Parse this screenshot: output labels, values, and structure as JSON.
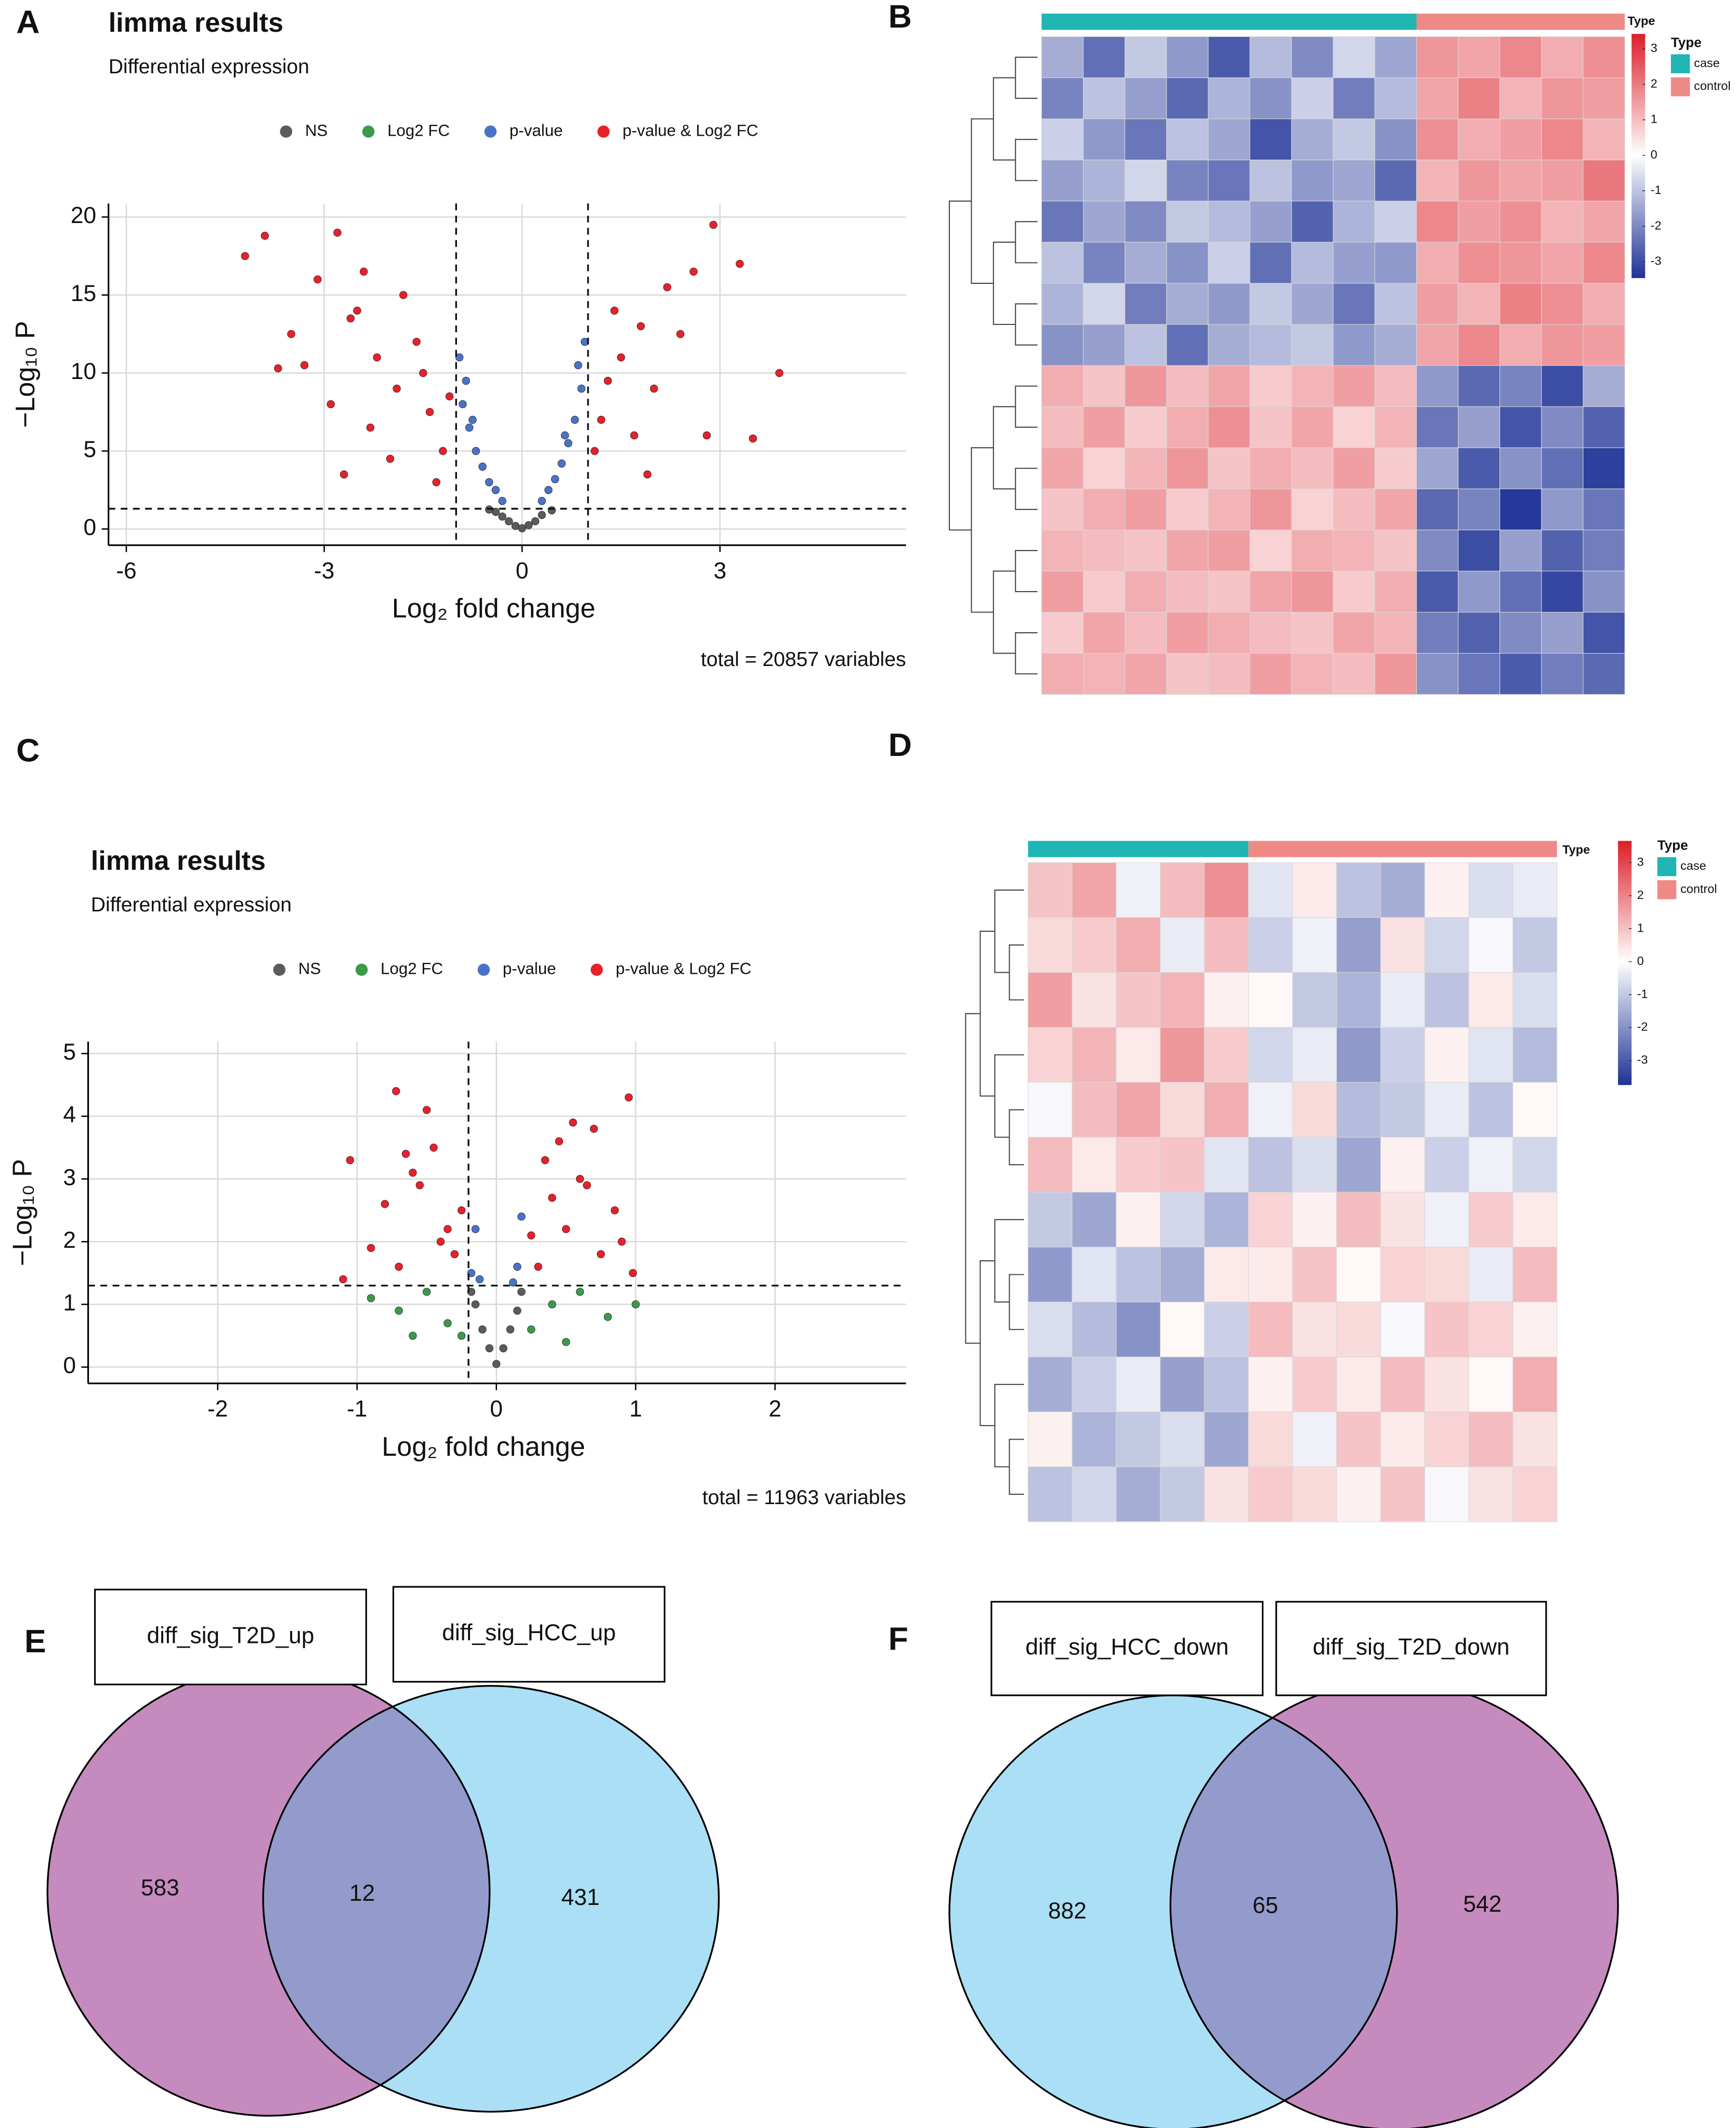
{
  "chart_data": [
    {
      "type": "scatter",
      "panel_label": "A",
      "title": "limma results",
      "subtitle": "Differential expression",
      "xlabel": "Log₂ fold change",
      "ylabel": "−Log₁₀ P",
      "caption": "total = 20857 variables",
      "xlim": [
        -6.27,
        5.82
      ],
      "ylim": [
        -1.04,
        20.87
      ],
      "xticks": [
        -6,
        -3,
        0,
        3
      ],
      "yticks": [
        0,
        5,
        10,
        15,
        20
      ],
      "grid": true,
      "legend": "top",
      "vlines": [
        -1,
        1
      ],
      "hline": 1.3,
      "series": [
        {
          "name": "NS",
          "color": "#5b5b5b",
          "x": [
            -0.4,
            -0.3,
            -0.2,
            -0.1,
            0,
            0.1,
            0.2,
            0.3,
            0.45,
            -0.5
          ],
          "values": [
            1.1,
            0.8,
            0.5,
            0.2,
            0.05,
            0.25,
            0.5,
            0.9,
            1.2,
            1.25
          ]
        },
        {
          "name": "Log2 FC",
          "color": "#3a9a4a",
          "x": [],
          "values": []
        },
        {
          "name": "p-value",
          "color": "#4a72c8",
          "x": [
            -0.9,
            -0.8,
            -0.7,
            -0.6,
            -0.5,
            -0.4,
            -0.3,
            -0.95,
            -0.85,
            -0.75,
            0.3,
            0.4,
            0.5,
            0.6,
            0.7,
            0.8,
            0.9,
            0.95,
            0.85,
            0.65
          ],
          "values": [
            8,
            6.5,
            5,
            4,
            3,
            2.5,
            1.8,
            11,
            9.5,
            7,
            1.8,
            2.5,
            3.2,
            4.2,
            5.5,
            7,
            9,
            12,
            10.5,
            6
          ]
        },
        {
          "name": "p-value & Log2 FC",
          "color": "#e8202a",
          "x": [
            -4.2,
            -3.9,
            -3.5,
            -3.1,
            -2.8,
            -2.5,
            -3.3,
            -2.9,
            -2.2,
            -2.6,
            -1.9,
            -2.3,
            -1.6,
            -2.0,
            -1.4,
            -1.8,
            -1.2,
            -2.7,
            -1.5,
            -1.1,
            -3.7,
            -2.4,
            -1.3,
            1.2,
            1.5,
            1.8,
            2.2,
            2.6,
            2.9,
            3.3,
            3.9,
            1.4,
            2.0,
            1.1,
            2.4,
            1.7,
            1.3,
            2.8,
            1.9,
            3.5
          ],
          "values": [
            17.5,
            18.8,
            12.5,
            16,
            19,
            14,
            10.5,
            8,
            11,
            13.5,
            9,
            6.5,
            12,
            4.5,
            7.5,
            15,
            5,
            3.5,
            10,
            8.5,
            10.3,
            16.5,
            3,
            7,
            11,
            13,
            15.5,
            16.5,
            19.5,
            17,
            10,
            14,
            9,
            5,
            12.5,
            6,
            9.5,
            6,
            3.5,
            5.8
          ]
        }
      ]
    },
    {
      "type": "heatmap",
      "panel_label": "B",
      "annotation_label": "Type",
      "legend_title": "Type",
      "zlim": [
        -3.46,
        3.42
      ],
      "colorbar_ticks": [
        3,
        2,
        1,
        0,
        -1,
        -2,
        -3
      ],
      "series": [
        {
          "name": "case",
          "color": "#20b5b3",
          "values": [
            [
              -1.2,
              -2.1,
              -0.8,
              -1.5,
              -2.4,
              -1.0,
              -1.7,
              -0.6,
              -1.3
            ],
            [
              -1.8,
              -0.9,
              -1.4,
              -2.2,
              -1.1,
              -1.6,
              -0.7,
              -1.9,
              -1.0
            ],
            [
              -0.7,
              -1.5,
              -2.0,
              -0.9,
              -1.3,
              -2.5,
              -1.2,
              -0.8,
              -1.6
            ],
            [
              -1.4,
              -1.1,
              -0.6,
              -1.8,
              -2.0,
              -0.9,
              -1.5,
              -1.3,
              -2.2
            ],
            [
              -2.0,
              -1.3,
              -1.7,
              -0.8,
              -1.0,
              -1.4,
              -2.3,
              -1.1,
              -0.7
            ],
            [
              -0.9,
              -1.8,
              -1.2,
              -1.6,
              -0.7,
              -2.1,
              -1.0,
              -1.4,
              -1.5
            ],
            [
              -1.1,
              -0.6,
              -1.9,
              -1.2,
              -1.5,
              -0.8,
              -1.3,
              -2.0,
              -0.9
            ],
            [
              -1.6,
              -1.4,
              -0.9,
              -2.1,
              -1.2,
              -1.0,
              -0.8,
              -1.5,
              -1.2
            ],
            [
              1.1,
              0.8,
              1.4,
              0.9,
              1.2,
              0.7,
              1.0,
              1.3,
              0.9
            ],
            [
              0.9,
              1.3,
              0.7,
              1.1,
              1.5,
              0.8,
              1.2,
              0.6,
              1.0
            ],
            [
              1.2,
              0.6,
              1.0,
              1.4,
              0.8,
              1.1,
              0.9,
              1.3,
              0.7
            ],
            [
              0.8,
              1.1,
              1.3,
              0.7,
              1.0,
              1.4,
              0.6,
              0.9,
              1.2
            ],
            [
              1.0,
              0.9,
              0.8,
              1.2,
              1.3,
              0.6,
              1.1,
              1.0,
              0.8
            ],
            [
              1.3,
              0.7,
              1.1,
              0.9,
              0.8,
              1.2,
              1.4,
              0.7,
              1.1
            ],
            [
              0.7,
              1.2,
              0.9,
              1.3,
              1.1,
              0.9,
              0.8,
              1.2,
              1.0
            ],
            [
              1.1,
              1.0,
              1.2,
              0.8,
              0.9,
              1.3,
              1.0,
              0.9,
              1.4
            ]
          ]
        },
        {
          "name": "control",
          "color": "#ee8a86",
          "values": [
            [
              1.4,
              1.2,
              1.6,
              1.1,
              1.5
            ],
            [
              1.2,
              1.7,
              1.0,
              1.4,
              1.3
            ],
            [
              1.5,
              1.1,
              1.3,
              1.6,
              1.0
            ],
            [
              1.0,
              1.4,
              1.2,
              1.3,
              1.8
            ],
            [
              1.6,
              1.3,
              1.5,
              1.0,
              1.2
            ],
            [
              1.1,
              1.5,
              1.4,
              1.2,
              1.6
            ],
            [
              1.3,
              1.0,
              1.7,
              1.5,
              1.1
            ],
            [
              1.2,
              1.6,
              1.1,
              1.4,
              1.3
            ],
            [
              -1.5,
              -2.2,
              -1.8,
              -2.6,
              -1.2
            ],
            [
              -2.0,
              -1.4,
              -2.5,
              -1.7,
              -2.3
            ],
            [
              -1.3,
              -2.4,
              -1.6,
              -2.1,
              -2.8
            ],
            [
              -2.2,
              -1.8,
              -2.9,
              -1.5,
              -2.0
            ],
            [
              -1.7,
              -2.6,
              -1.4,
              -2.3,
              -1.9
            ],
            [
              -2.4,
              -1.5,
              -2.1,
              -2.7,
              -1.6
            ],
            [
              -1.9,
              -2.3,
              -1.7,
              -1.4,
              -2.5
            ],
            [
              -1.6,
              -2.0,
              -2.4,
              -1.9,
              -2.2
            ]
          ]
        }
      ]
    },
    {
      "type": "scatter",
      "panel_label": "C",
      "title": "limma results",
      "subtitle": "Differential expression",
      "xlabel": "Log₂ fold change",
      "ylabel": "−Log₁₀ P",
      "caption": "total = 11963 variables",
      "xlim": [
        -2.93,
        2.94
      ],
      "ylim": [
        -0.26,
        5.19
      ],
      "xticks": [
        -2,
        -1,
        0,
        1,
        2
      ],
      "yticks": [
        0,
        1,
        2,
        3,
        4,
        5
      ],
      "grid": true,
      "legend": "top",
      "vlines": [
        -0.2
      ],
      "hline": 1.3,
      "series": [
        {
          "name": "NS",
          "color": "#5b5b5b",
          "x": [
            -0.15,
            -0.1,
            -0.05,
            0,
            0.05,
            0.1,
            0.15,
            -0.18,
            0.18
          ],
          "values": [
            1.0,
            0.6,
            0.3,
            0.05,
            0.3,
            0.6,
            0.9,
            1.2,
            1.2
          ]
        },
        {
          "name": "Log2 FC",
          "color": "#3a9a4a",
          "x": [
            -0.9,
            -0.7,
            -0.5,
            -0.35,
            -0.25,
            0.25,
            0.4,
            0.6,
            0.8,
            1.0,
            -0.6,
            0.5
          ],
          "values": [
            1.1,
            0.9,
            1.2,
            0.7,
            0.5,
            0.6,
            1.0,
            1.2,
            0.8,
            1.0,
            0.5,
            0.4
          ]
        },
        {
          "name": "p-value",
          "color": "#4a72c8",
          "x": [
            -0.18,
            -0.15,
            0.15,
            0.18,
            -0.12,
            0.12
          ],
          "values": [
            1.5,
            2.2,
            1.6,
            2.4,
            1.4,
            1.35
          ]
        },
        {
          "name": "p-value & Log2 FC",
          "color": "#e8202a",
          "x": [
            -0.72,
            -0.5,
            -1.05,
            -0.8,
            -0.6,
            -0.45,
            -0.35,
            -0.9,
            -0.7,
            -0.55,
            -0.3,
            -0.25,
            -0.65,
            -1.1,
            -0.4,
            0.25,
            0.35,
            0.45,
            0.55,
            0.7,
            0.95,
            0.85,
            0.65,
            0.3,
            0.4,
            0.5,
            0.6,
            0.75,
            0.9,
            0.98
          ],
          "values": [
            4.4,
            4.1,
            3.3,
            2.6,
            3.1,
            3.5,
            2.2,
            1.9,
            1.6,
            2.9,
            1.8,
            2.5,
            3.4,
            1.4,
            2.0,
            2.1,
            3.3,
            3.6,
            3.9,
            3.8,
            4.3,
            2.5,
            2.9,
            1.6,
            2.7,
            2.2,
            3.0,
            1.8,
            2.0,
            1.5
          ]
        }
      ]
    },
    {
      "type": "heatmap",
      "panel_label": "D",
      "annotation_label": "Type",
      "legend_title": "Type",
      "zlim": [
        -3.74,
        3.66
      ],
      "colorbar_ticks": [
        3,
        2,
        1,
        0,
        -1,
        -2,
        -3
      ],
      "series": [
        {
          "name": "case",
          "color": "#20b5b3",
          "values": [
            [
              0.8,
              1.2,
              -0.2,
              0.9,
              1.5
            ],
            [
              0.5,
              0.7,
              1.1,
              -0.3,
              0.9
            ],
            [
              1.3,
              0.4,
              0.8,
              1.0,
              0.2
            ],
            [
              0.6,
              1.0,
              0.3,
              1.4,
              0.7
            ],
            [
              -0.1,
              0.9,
              1.2,
              0.5,
              1.1
            ],
            [
              0.9,
              0.3,
              0.7,
              0.8,
              -0.4
            ],
            [
              -0.8,
              -1.3,
              0.2,
              -0.6,
              -1.1
            ],
            [
              -1.5,
              -0.4,
              -0.9,
              -1.2,
              0.3
            ],
            [
              -0.5,
              -1.0,
              -1.6,
              0.1,
              -0.7
            ],
            [
              -1.2,
              -0.7,
              -0.3,
              -1.4,
              -0.9
            ],
            [
              0.2,
              -1.1,
              -0.8,
              -0.5,
              -1.3
            ],
            [
              -0.9,
              -0.6,
              -1.2,
              -0.8,
              0.4
            ]
          ]
        },
        {
          "name": "control",
          "color": "#ee8a86",
          "values": [
            [
              -0.4,
              0.3,
              -0.9,
              -1.2,
              0.2,
              -0.5,
              -0.3
            ],
            [
              -0.7,
              -0.2,
              -1.4,
              0.4,
              -0.6,
              -0.1,
              -0.8
            ],
            [
              0.1,
              -0.8,
              -1.1,
              -0.3,
              -0.9,
              0.3,
              -0.5
            ],
            [
              -0.6,
              -0.3,
              -1.5,
              -0.7,
              0.2,
              -0.4,
              -1.0
            ],
            [
              -0.2,
              0.5,
              -1.0,
              -0.8,
              -0.3,
              -0.9,
              0.1
            ],
            [
              -0.9,
              -0.5,
              -1.3,
              0.2,
              -0.7,
              -0.2,
              -0.6
            ],
            [
              0.6,
              0.2,
              0.9,
              0.4,
              -0.2,
              0.7,
              0.3
            ],
            [
              0.3,
              0.8,
              0.1,
              0.6,
              0.5,
              -0.3,
              0.9
            ],
            [
              0.9,
              0.4,
              0.5,
              -0.1,
              0.8,
              0.6,
              0.2
            ],
            [
              0.2,
              0.7,
              0.3,
              0.9,
              0.4,
              0.1,
              1.1
            ],
            [
              0.5,
              -0.2,
              0.8,
              0.3,
              0.6,
              0.9,
              0.4
            ],
            [
              0.7,
              0.5,
              0.2,
              0.8,
              -0.1,
              0.4,
              0.6
            ]
          ]
        }
      ]
    },
    {
      "type": "venn",
      "panel_label": "E",
      "sets": [
        {
          "name": "diff_sig_T2D_up",
          "color": "#c68bbe",
          "count": 583
        },
        {
          "name": "diff_sig_HCC_up",
          "color": "#aadff5",
          "count": 431
        }
      ],
      "overlap": {
        "count": 12,
        "color": "#939bcd"
      }
    },
    {
      "type": "venn",
      "panel_label": "F",
      "sets": [
        {
          "name": "diff_sig_HCC_down",
          "color": "#aadff5",
          "count": 882
        },
        {
          "name": "diff_sig_T2D_down",
          "color": "#c68bbe",
          "count": 542
        }
      ],
      "overlap": {
        "count": 65,
        "color": "#939bcd"
      }
    }
  ]
}
